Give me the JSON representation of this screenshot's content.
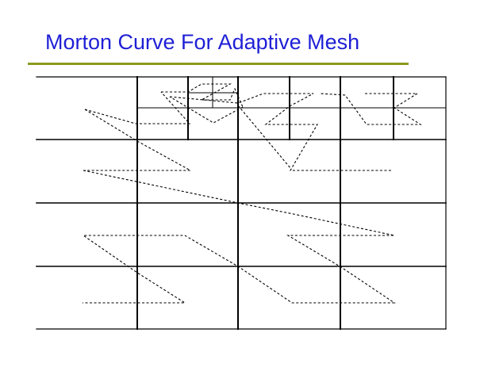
{
  "slide": {
    "title": "Morton Curve For Adaptive Mesh"
  },
  "diagram": {
    "type": "adaptive-mesh-morton-curve",
    "grid_levels": {
      "coarse_columns": 4,
      "coarse_rows": 4,
      "refined_cells": 4
    },
    "line_color": "#000000",
    "title_color": "#1f1fd6",
    "rule_color": "#8c9a1e",
    "curve_style": "dashed"
  }
}
